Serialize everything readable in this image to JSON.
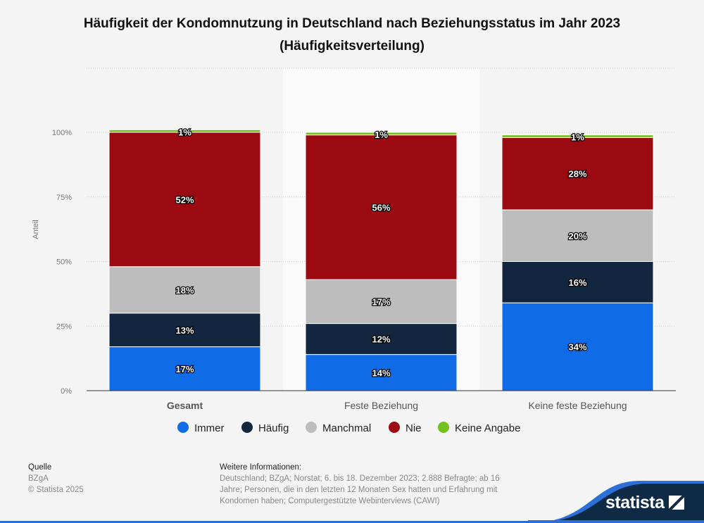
{
  "chart_data": {
    "type": "bar",
    "stacked": true,
    "title": "Häufigkeit der Kondomnutzung in Deutschland nach Beziehungsstatus im Jahr 2023 (Häufigkeitsverteilung)",
    "ylabel": "Anteil",
    "ylim": [
      0,
      100
    ],
    "yticks": [
      "0%",
      "25%",
      "50%",
      "75%",
      "100%"
    ],
    "categories": [
      "Gesamt",
      "Feste Beziehung",
      "Keine feste Beziehung"
    ],
    "series": [
      {
        "name": "Immer",
        "color": "#0f6ce6",
        "values": [
          17,
          14,
          34
        ]
      },
      {
        "name": "Häufig",
        "color": "#13263f",
        "values": [
          13,
          12,
          16
        ]
      },
      {
        "name": "Manchmal",
        "color": "#bdbdbd",
        "values": [
          18,
          17,
          20
        ]
      },
      {
        "name": "Nie",
        "color": "#9c0a11",
        "values": [
          52,
          56,
          28
        ]
      },
      {
        "name": "Keine Angabe",
        "color": "#72c11e",
        "values": [
          1,
          1,
          1
        ]
      }
    ],
    "legend": "bottom-center"
  },
  "footer": {
    "source_label": "Quelle",
    "source": "BZgA",
    "copyright": "© Statista 2025",
    "info_label": "Weitere Informationen:",
    "info": "Deutschland; BZgA; Norstat; 6. bis 18. Dezember 2023; 2.888 Befragte; ab 16 Jahre; Personen, die in den letzten 12 Monaten Sex hatten und Erfahrung mit Kondomen haben; Computergestützte Webinterviews (CAWI)",
    "logo": "statista"
  }
}
